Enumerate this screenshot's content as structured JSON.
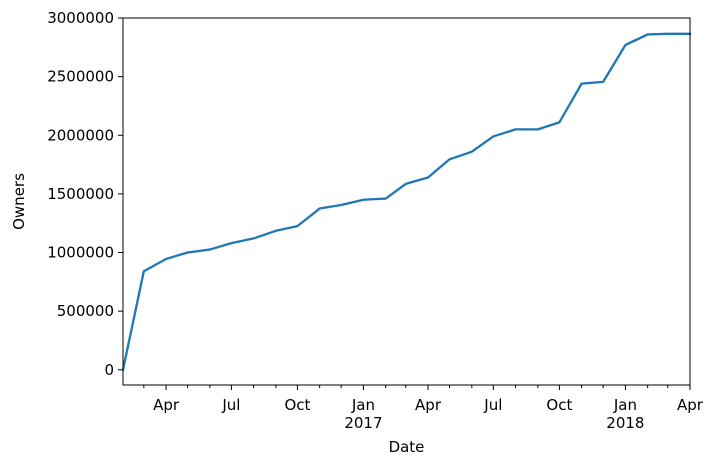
{
  "chart_data": {
    "type": "line",
    "title": "",
    "xlabel": "Date",
    "ylabel": "Owners",
    "ylim": [
      -130000,
      3000000
    ],
    "xlim": [
      "2016-02-01",
      "2018-04-01"
    ],
    "grid": false,
    "line_color": "#1f77b4",
    "y_ticks": [
      {
        "value": 0,
        "label": "0"
      },
      {
        "value": 500000,
        "label": "500000"
      },
      {
        "value": 1000000,
        "label": "1000000"
      },
      {
        "value": 1500000,
        "label": "1500000"
      },
      {
        "value": 2000000,
        "label": "2000000"
      },
      {
        "value": 2500000,
        "label": "2500000"
      },
      {
        "value": 3000000,
        "label": "3000000"
      }
    ],
    "x_major_ticks": [
      {
        "date": "2016-04-01",
        "label": "Apr",
        "sublabel": ""
      },
      {
        "date": "2016-07-01",
        "label": "Jul",
        "sublabel": ""
      },
      {
        "date": "2016-10-01",
        "label": "Oct",
        "sublabel": ""
      },
      {
        "date": "2017-01-01",
        "label": "Jan",
        "sublabel": "2017"
      },
      {
        "date": "2017-04-01",
        "label": "Apr",
        "sublabel": ""
      },
      {
        "date": "2017-07-01",
        "label": "Jul",
        "sublabel": ""
      },
      {
        "date": "2017-10-01",
        "label": "Oct",
        "sublabel": ""
      },
      {
        "date": "2018-01-01",
        "label": "Jan",
        "sublabel": "2018"
      },
      {
        "date": "2018-04-01",
        "label": "Apr",
        "sublabel": ""
      }
    ],
    "x_minor_ticks": [
      "2016-03-01",
      "2016-05-01",
      "2016-06-01",
      "2016-08-01",
      "2016-09-01",
      "2016-11-01",
      "2016-12-01",
      "2017-02-01",
      "2017-03-01",
      "2017-05-01",
      "2017-06-01",
      "2017-08-01",
      "2017-09-01",
      "2017-11-01",
      "2017-12-01",
      "2018-02-01",
      "2018-03-01"
    ],
    "series": [
      {
        "x": [
          "2016-02-01",
          "2016-03-01",
          "2016-04-01",
          "2016-05-01",
          "2016-06-01",
          "2016-07-01",
          "2016-08-01",
          "2016-09-01",
          "2016-10-01",
          "2016-11-01",
          "2016-12-01",
          "2017-01-01",
          "2017-02-01",
          "2017-03-01",
          "2017-04-01",
          "2017-05-01",
          "2017-06-01",
          "2017-07-01",
          "2017-08-01",
          "2017-09-01",
          "2017-10-01",
          "2017-11-01",
          "2017-12-01",
          "2018-01-01",
          "2018-02-01",
          "2018-03-01",
          "2018-04-01"
        ],
        "values": [
          0,
          840000,
          945000,
          1000000,
          1025000,
          1080000,
          1120000,
          1185000,
          1225000,
          1375000,
          1405000,
          1450000,
          1460000,
          1585000,
          1640000,
          1795000,
          1860000,
          1990000,
          2050000,
          2050000,
          2110000,
          2440000,
          2455000,
          2770000,
          2860000,
          2865000,
          2865000
        ]
      }
    ]
  }
}
